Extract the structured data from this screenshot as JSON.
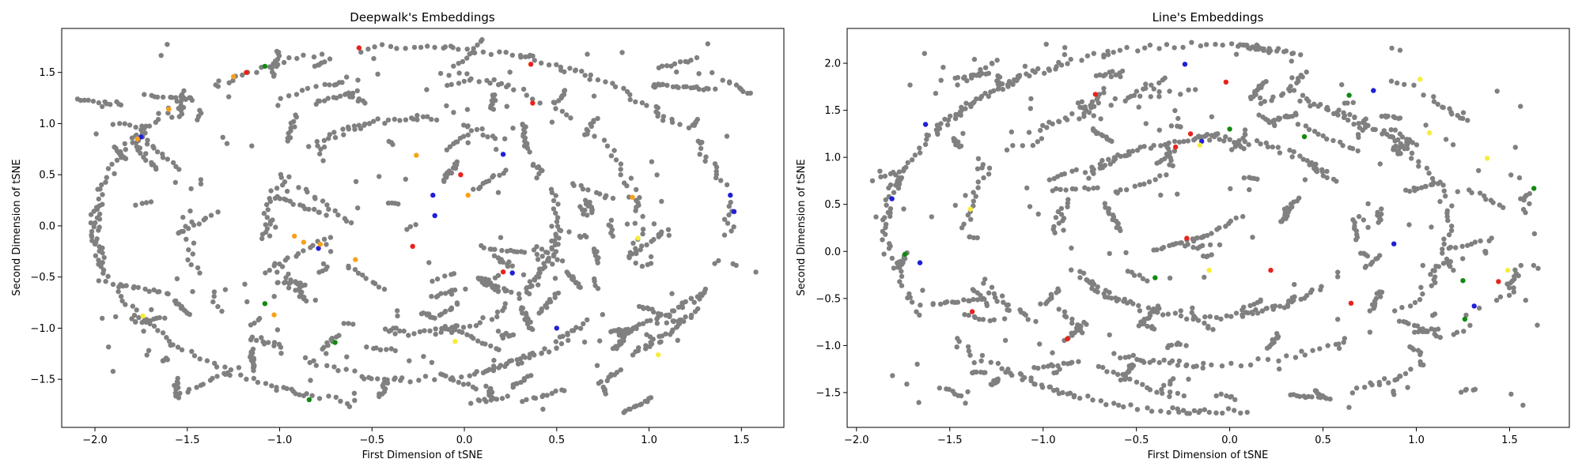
{
  "chart_data": [
    {
      "type": "scatter",
      "title": "Deepwalk's Embeddings",
      "xlabel": "First Dimension of tSNE",
      "ylabel": "Second Dimension of tSNE",
      "xlim": [
        -2.18,
        1.73
      ],
      "ylim": [
        -1.97,
        1.93
      ],
      "xticks": [
        -2.0,
        -1.5,
        -1.0,
        -0.5,
        0.0,
        0.5,
        1.0,
        1.5
      ],
      "yticks": [
        -1.5,
        -1.0,
        -0.5,
        0.0,
        0.5,
        1.0,
        1.5
      ],
      "grid": false,
      "legend": "none",
      "point_color": "#808080",
      "highlight_colors": {
        "red": "#e8231c",
        "blue": "#1f1fd9",
        "green": "#118a11",
        "orange": "#f7a21b",
        "yellow": "#f8ec3a"
      },
      "highlighted_points": [
        {
          "x": -0.57,
          "y": 1.74,
          "color": "red"
        },
        {
          "x": -1.18,
          "y": 1.5,
          "color": "red"
        },
        {
          "x": -1.25,
          "y": 1.46,
          "color": "orange"
        },
        {
          "x": -1.08,
          "y": 1.56,
          "color": "green"
        },
        {
          "x": 0.36,
          "y": 1.58,
          "color": "red"
        },
        {
          "x": 0.37,
          "y": 1.2,
          "color": "red"
        },
        {
          "x": -1.6,
          "y": 1.14,
          "color": "orange"
        },
        {
          "x": -1.75,
          "y": 0.87,
          "color": "blue"
        },
        {
          "x": -1.77,
          "y": 0.85,
          "color": "orange"
        },
        {
          "x": -0.26,
          "y": 0.69,
          "color": "orange"
        },
        {
          "x": 0.21,
          "y": 0.7,
          "color": "blue"
        },
        {
          "x": -0.02,
          "y": 0.5,
          "color": "red"
        },
        {
          "x": 0.02,
          "y": 0.3,
          "color": "orange"
        },
        {
          "x": -0.17,
          "y": 0.3,
          "color": "blue"
        },
        {
          "x": -0.16,
          "y": 0.1,
          "color": "blue"
        },
        {
          "x": 0.91,
          "y": 0.28,
          "color": "orange"
        },
        {
          "x": 1.46,
          "y": 0.14,
          "color": "blue"
        },
        {
          "x": 1.44,
          "y": 0.3,
          "color": "blue"
        },
        {
          "x": -0.92,
          "y": -0.1,
          "color": "orange"
        },
        {
          "x": -0.87,
          "y": -0.16,
          "color": "orange"
        },
        {
          "x": -0.79,
          "y": -0.22,
          "color": "blue"
        },
        {
          "x": -0.78,
          "y": -0.18,
          "color": "orange"
        },
        {
          "x": -0.59,
          "y": -0.33,
          "color": "orange"
        },
        {
          "x": -0.28,
          "y": -0.2,
          "color": "red"
        },
        {
          "x": 0.21,
          "y": -0.45,
          "color": "red"
        },
        {
          "x": 0.26,
          "y": -0.46,
          "color": "blue"
        },
        {
          "x": 0.94,
          "y": -0.12,
          "color": "yellow"
        },
        {
          "x": -1.08,
          "y": -0.76,
          "color": "green"
        },
        {
          "x": -1.03,
          "y": -0.87,
          "color": "orange"
        },
        {
          "x": -1.74,
          "y": -0.88,
          "color": "yellow"
        },
        {
          "x": -0.7,
          "y": -1.14,
          "color": "green"
        },
        {
          "x": -0.05,
          "y": -1.13,
          "color": "yellow"
        },
        {
          "x": 0.5,
          "y": -1.0,
          "color": "blue"
        },
        {
          "x": 1.05,
          "y": -1.26,
          "color": "yellow"
        },
        {
          "x": -0.84,
          "y": -1.7,
          "color": "green"
        }
      ]
    },
    {
      "type": "scatter",
      "title": "Line's Embeddings",
      "xlabel": "First Dimension of tSNE",
      "ylabel": "Second Dimension of tSNE",
      "xlim": [
        -2.05,
        1.82
      ],
      "ylim": [
        -1.87,
        2.37
      ],
      "xticks": [
        -2.0,
        -1.5,
        -1.0,
        -0.5,
        0.0,
        0.5,
        1.0,
        1.5
      ],
      "yticks": [
        -1.5,
        -1.0,
        -0.5,
        0.0,
        0.5,
        1.0,
        1.5,
        2.0
      ],
      "grid": false,
      "legend": "none",
      "point_color": "#808080",
      "highlight_colors": {
        "red": "#e8231c",
        "blue": "#1f1fd9",
        "green": "#118a11",
        "orange": "#f7a21b",
        "yellow": "#f8ec3a"
      },
      "highlighted_points": [
        {
          "x": -0.24,
          "y": 1.99,
          "color": "blue"
        },
        {
          "x": -0.02,
          "y": 1.8,
          "color": "red"
        },
        {
          "x": -0.72,
          "y": 1.67,
          "color": "red"
        },
        {
          "x": 0.64,
          "y": 1.66,
          "color": "green"
        },
        {
          "x": 0.77,
          "y": 1.71,
          "color": "blue"
        },
        {
          "x": 1.02,
          "y": 1.83,
          "color": "yellow"
        },
        {
          "x": -1.63,
          "y": 1.35,
          "color": "blue"
        },
        {
          "x": -0.21,
          "y": 1.25,
          "color": "red"
        },
        {
          "x": -0.15,
          "y": 1.17,
          "color": "blue"
        },
        {
          "x": -0.16,
          "y": 1.13,
          "color": "yellow"
        },
        {
          "x": 0.0,
          "y": 1.3,
          "color": "green"
        },
        {
          "x": -0.29,
          "y": 1.11,
          "color": "red"
        },
        {
          "x": 1.07,
          "y": 1.26,
          "color": "yellow"
        },
        {
          "x": 1.38,
          "y": 0.99,
          "color": "yellow"
        },
        {
          "x": 0.4,
          "y": 1.22,
          "color": "green"
        },
        {
          "x": -1.39,
          "y": 0.45,
          "color": "yellow"
        },
        {
          "x": -1.81,
          "y": 0.56,
          "color": "blue"
        },
        {
          "x": -0.23,
          "y": 0.14,
          "color": "red"
        },
        {
          "x": -1.74,
          "y": -0.03,
          "color": "green"
        },
        {
          "x": -1.66,
          "y": -0.12,
          "color": "blue"
        },
        {
          "x": -0.4,
          "y": -0.28,
          "color": "green"
        },
        {
          "x": -0.11,
          "y": -0.2,
          "color": "yellow"
        },
        {
          "x": 0.22,
          "y": -0.2,
          "color": "red"
        },
        {
          "x": 0.88,
          "y": 0.08,
          "color": "blue"
        },
        {
          "x": 1.63,
          "y": 0.67,
          "color": "green"
        },
        {
          "x": 1.49,
          "y": -0.2,
          "color": "yellow"
        },
        {
          "x": 1.44,
          "y": -0.32,
          "color": "red"
        },
        {
          "x": 1.25,
          "y": -0.31,
          "color": "green"
        },
        {
          "x": 1.31,
          "y": -0.58,
          "color": "blue"
        },
        {
          "x": 1.26,
          "y": -0.72,
          "color": "green"
        },
        {
          "x": 0.65,
          "y": -0.55,
          "color": "red"
        },
        {
          "x": -1.38,
          "y": -0.64,
          "color": "red"
        },
        {
          "x": -0.87,
          "y": -0.93,
          "color": "red"
        }
      ]
    }
  ]
}
